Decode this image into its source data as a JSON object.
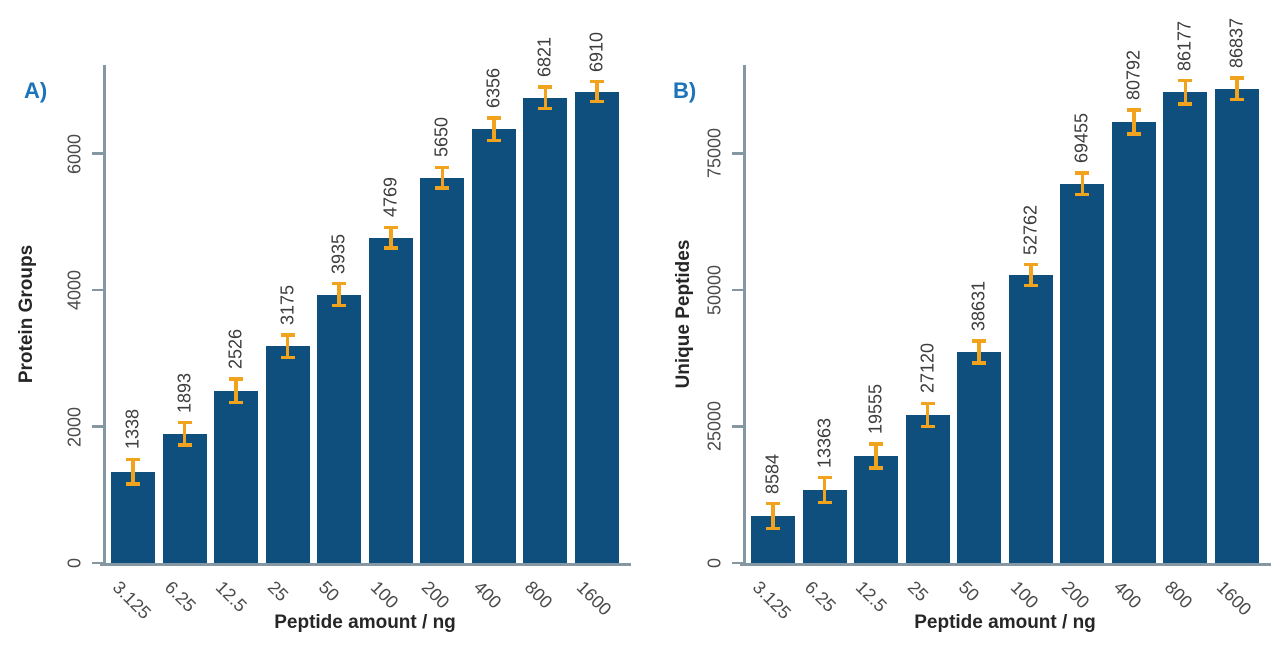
{
  "colors": {
    "bar": "#0f4f7e",
    "error_bar": "#f2a31d",
    "axis": "#8697a4",
    "panel_label": "#1b74ba",
    "value_text": "#3d3d3d",
    "tick_text": "#4b4b4b",
    "title_text": "#262626",
    "background": "#ffffff"
  },
  "chart_data": [
    {
      "type": "bar",
      "panel_label": "A)",
      "title": "",
      "xlabel": "Peptide amount / ng",
      "ylabel": "Protein Groups",
      "categories": [
        "3.125",
        "6.25",
        "12.5",
        "25",
        "50",
        "100",
        "200",
        "400",
        "800",
        "1600"
      ],
      "values": [
        1338,
        1893,
        2526,
        3175,
        3935,
        4769,
        5650,
        6356,
        6821,
        6910
      ],
      "errors": [
        180,
        165,
        170,
        165,
        160,
        150,
        150,
        165,
        155,
        145
      ],
      "value_labels": [
        1338,
        1893,
        2526,
        3175,
        3935,
        4769,
        5650,
        6356,
        6821,
        6910
      ],
      "value_label_rotation": -90,
      "x_tick_rotation": 45,
      "yticks": [
        0,
        2000,
        4000,
        6000
      ],
      "ylim": [
        0,
        7300
      ],
      "grid": false,
      "legend": "none",
      "error_bars": true
    },
    {
      "type": "bar",
      "panel_label": "B)",
      "title": "",
      "xlabel": "Peptide amount / ng",
      "ylabel": "Unique Peptides",
      "categories": [
        "3.125",
        "6.25",
        "12.5",
        "25",
        "50",
        "100",
        "200",
        "400",
        "800",
        "1600"
      ],
      "values": [
        8584,
        13363,
        19555,
        27120,
        38631,
        52762,
        69455,
        80792,
        86177,
        86837
      ],
      "errors": [
        2300,
        2250,
        2200,
        2100,
        2050,
        1900,
        2000,
        2200,
        2150,
        2000
      ],
      "value_labels": [
        8584,
        13363,
        19555,
        27120,
        38631,
        52762,
        69455,
        80792,
        86177,
        86837
      ],
      "value_label_rotation": -90,
      "x_tick_rotation": 45,
      "yticks": [
        0,
        25000,
        50000,
        75000
      ],
      "ylim": [
        0,
        91200
      ],
      "grid": false,
      "legend": "none",
      "error_bars": true
    }
  ]
}
